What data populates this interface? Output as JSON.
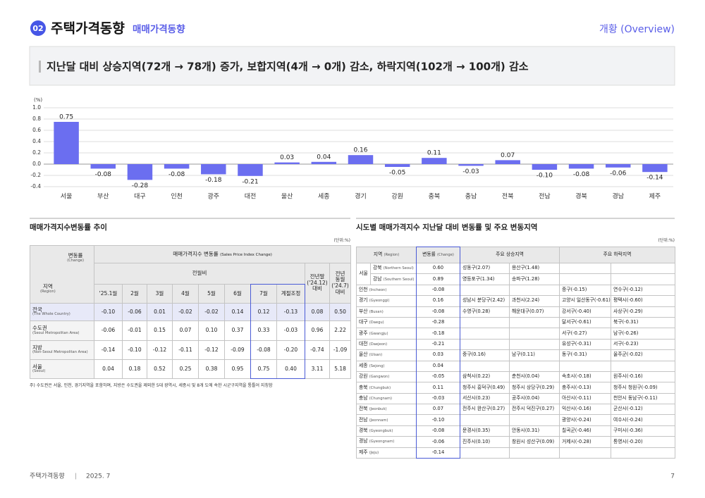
{
  "header": {
    "badge": "02",
    "title": "주택가격동향",
    "subtitle": "매매가격동향",
    "section": "개황 (Overview)"
  },
  "headline": "지난달 대비 상승지역(72개 → 78개) 증가, 보합지역(4개 → 0개) 감소, 하락지역(102개 → 100개) 감소",
  "chart_data": {
    "type": "bar",
    "unit_label": "(%)",
    "categories": [
      "서울",
      "부산",
      "대구",
      "인천",
      "광주",
      "대전",
      "울산",
      "세종",
      "경기",
      "강원",
      "충북",
      "충남",
      "전북",
      "전남",
      "경북",
      "경남",
      "제주"
    ],
    "values": [
      0.75,
      -0.08,
      -0.28,
      -0.08,
      -0.18,
      -0.21,
      0.03,
      0.04,
      0.16,
      -0.05,
      0.11,
      -0.03,
      0.07,
      -0.1,
      -0.08,
      -0.06,
      -0.14
    ],
    "value_labels": [
      "0.75",
      "-0.08",
      "-0.28",
      "-0.08",
      "-0.18",
      "-0.21",
      "0.03",
      "0.04",
      "0.16",
      "-0.05",
      "0.11",
      "-0.03",
      "0.07",
      "-0.10",
      "-0.08",
      "-0.06",
      "-0.14"
    ],
    "color": "#6b6ef0",
    "ylim": [
      -0.4,
      1.0
    ],
    "yticks": [
      -0.4,
      -0.2,
      {
        "value": 0,
        "label": "0.0"
      },
      0.2,
      0.4,
      0.6,
      0.8,
      {
        "value": 1,
        "label": "1.0"
      }
    ],
    "grid": true
  },
  "left_table": {
    "title": "매매가격지수변동률 추이",
    "unit": "(단위:%)",
    "header": {
      "change": "변동률",
      "change_en": "(Change)",
      "region": "지역",
      "region_en": "(Region)",
      "group": "매매가격지수 변동률",
      "group_en": "(Sales Price Index Change)",
      "mom": "전월비",
      "months": [
        "'25.1월",
        "2월",
        "3월",
        "4월",
        "5월",
        "6월",
        "7월",
        "계절조정"
      ],
      "ytd": [
        "전년말",
        "('24.12)",
        "대비"
      ],
      "yoy": [
        "전년",
        "동월",
        "('24.7)",
        "대비"
      ]
    },
    "rows": [
      {
        "name": "전국",
        "en": "(The Whole Country)",
        "values": [
          "-0.10",
          "-0.06",
          "0.01",
          "-0.02",
          "-0.02",
          "0.14",
          "0.12",
          "-0.13",
          "0.08",
          "0.50"
        ]
      },
      {
        "name": "수도권",
        "en": "(Seoul Metropolitan Area)",
        "values": [
          "-0.06",
          "-0.01",
          "0.15",
          "0.07",
          "0.10",
          "0.37",
          "0.33",
          "-0.03",
          "0.96",
          "2.22"
        ]
      },
      {
        "name": "지방",
        "en": "(Non-Seoul Metropolitan Area)",
        "values": [
          "-0.14",
          "-0.10",
          "-0.12",
          "-0.11",
          "-0.12",
          "-0.09",
          "-0.08",
          "-0.20",
          "-0.74",
          "-1.09"
        ]
      },
      {
        "name": "서울",
        "en": "(Seoul)",
        "values": [
          "0.04",
          "0.18",
          "0.52",
          "0.25",
          "0.38",
          "0.95",
          "0.75",
          "0.40",
          "3.11",
          "5.18"
        ]
      }
    ],
    "note": "주) 수도권은 서울, 인천, 경기지역을 포함하며, 지방은 수도권을 제외한 5대 광역시, 세종시 및 8개 도에 속한 시군구지역을 통틀어 지칭함"
  },
  "right_table": {
    "title": "시도별 매매가격지수 지난달 대비 변동률 및 주요 변동지역",
    "unit": "(단위:%)",
    "header": {
      "region": "지역",
      "region_en": "(Region)",
      "change": "변동률",
      "change_en": "(Change)",
      "up": "주요 상승지역",
      "down": "주요 하락지역"
    },
    "rows": [
      {
        "group": "서울",
        "name": "강북",
        "en": "(Northern Seoul)",
        "change": "0.60",
        "up": [
          "성동구(2.07)",
          "용산구(1.48)"
        ],
        "down": []
      },
      {
        "name": "강남",
        "en": "(Southern Seoul)",
        "change": "0.89",
        "up": [
          "영등포구(1.34)",
          "송파구(1.28)"
        ],
        "down": []
      },
      {
        "name": "인천",
        "en": "(Incheon)",
        "change": "-0.08",
        "up": [],
        "down": [
          "중구(-0.15)",
          "연수구(-0.12)"
        ]
      },
      {
        "name": "경기",
        "en": "(Gyeonggi)",
        "change": "0.16",
        "up": [
          "성남시 분당구(2.42)",
          "과천시(2.24)"
        ],
        "down": [
          "고양시 일산동구(-0.61)",
          "평택시(-0.60)"
        ]
      },
      {
        "name": "부산",
        "en": "(Busan)",
        "change": "-0.08",
        "up": [
          "수영구(0.28)",
          "해운대구(0.07)"
        ],
        "down": [
          "강서구(-0.40)",
          "사상구(-0.29)"
        ]
      },
      {
        "name": "대구",
        "en": "(Daegu)",
        "change": "-0.28",
        "up": [],
        "down": [
          "달서구(-0.61)",
          "북구(-0.31)"
        ]
      },
      {
        "name": "광주",
        "en": "(Gwangju)",
        "change": "-0.18",
        "up": [],
        "down": [
          "서구(-0.27)",
          "남구(-0.26)"
        ]
      },
      {
        "name": "대전",
        "en": "(Daejeon)",
        "change": "-0.21",
        "up": [],
        "down": [
          "유성구(-0.31)",
          "서구(-0.23)"
        ]
      },
      {
        "name": "울산",
        "en": "(Ulsan)",
        "change": "0.03",
        "up": [
          "중구(0.16)",
          "남구(0.11)"
        ],
        "down": [
          "동구(-0.31)",
          "울주군(-0.02)"
        ]
      },
      {
        "name": "세종",
        "en": "(Sejong)",
        "change": "0.04",
        "up": [],
        "down": []
      },
      {
        "name": "강원",
        "en": "(Gangwon)",
        "change": "-0.05",
        "up": [
          "삼척시(0.22)",
          "춘천시(0.04)"
        ],
        "down": [
          "속초시(-0.18)",
          "원주시(-0.16)"
        ]
      },
      {
        "name": "충북",
        "en": "(Chungbuk)",
        "change": "0.11",
        "up": [
          "청주시 흥덕구(0.49)",
          "청주시 상당구(0.29)"
        ],
        "down": [
          "충주시(-0.13)",
          "청주시 청원구(-0.09)"
        ]
      },
      {
        "name": "충남",
        "en": "(Chungnam)",
        "change": "-0.03",
        "up": [
          "서산시(0.23)",
          "공주시(0.04)"
        ],
        "down": [
          "아산시(-0.11)",
          "천안시 동남구(-0.11)"
        ]
      },
      {
        "name": "전북",
        "en": "(Jeonbuk)",
        "change": "0.07",
        "up": [
          "전주시 완산구(0.27)",
          "전주시 덕진구(0.27)"
        ],
        "down": [
          "익산시(-0.16)",
          "군산시(-0.12)"
        ]
      },
      {
        "name": "전남",
        "en": "(Jeonnam)",
        "change": "-0.10",
        "up": [],
        "down": [
          "광양시(-0.24)",
          "여수시(-0.24)"
        ]
      },
      {
        "name": "경북",
        "en": "(Gyeongbuk)",
        "change": "-0.08",
        "up": [
          "문경시(0.35)",
          "안동시(0.31)"
        ],
        "down": [
          "칠곡군(-0.46)",
          "구미시(-0.36)"
        ]
      },
      {
        "name": "경남",
        "en": "(Gyeongnam)",
        "change": "-0.06",
        "up": [
          "진주시(0.10)",
          "창원시 성산구(0.09)"
        ],
        "down": [
          "거제시(-0.28)",
          "통영시(-0.20)"
        ]
      },
      {
        "name": "제주",
        "en": "(Jeju)",
        "change": "-0.14",
        "up": [],
        "down": []
      }
    ]
  },
  "footer": {
    "doc": "주택가격동향",
    "date": "2025. 7",
    "page": "7"
  }
}
